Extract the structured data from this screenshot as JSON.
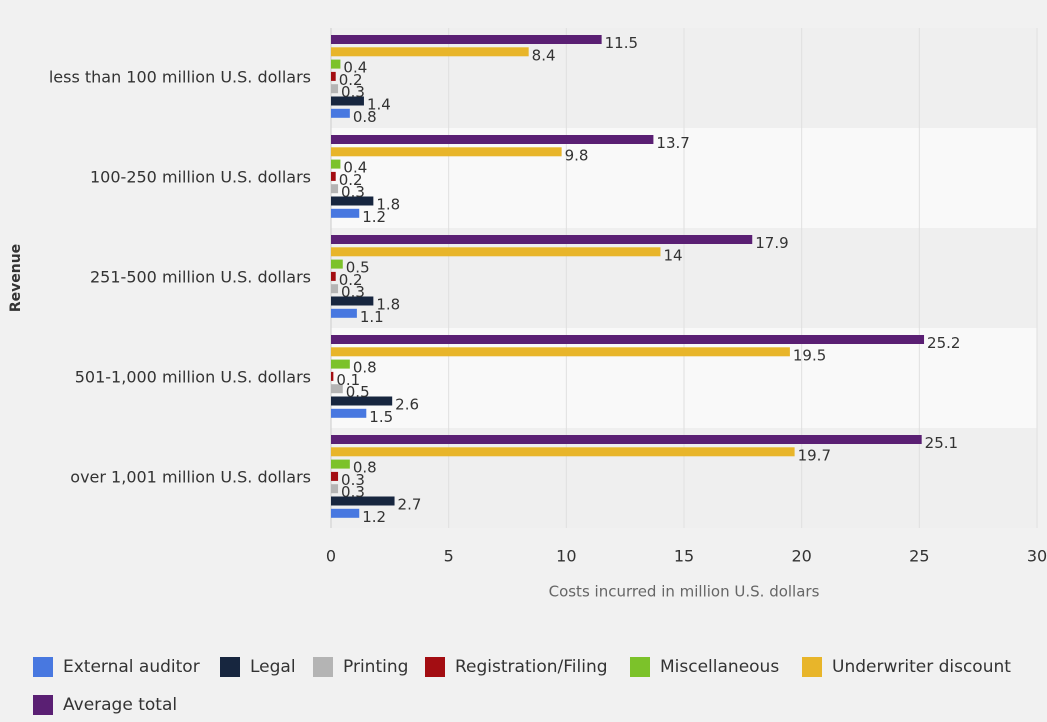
{
  "chart_data": {
    "type": "barh",
    "categories": [
      "less than 100 million U.S. dollars",
      "100-250 million U.S. dollars",
      "251-500 million U.S. dollars",
      "501-1,000 million U.S. dollars",
      "over 1,001 million U.S. dollars"
    ],
    "series": [
      {
        "name": "External auditor",
        "color": "#4878e0",
        "values": [
          0.8,
          1.2,
          1.1,
          1.5,
          1.2
        ]
      },
      {
        "name": "Legal",
        "color": "#17263f",
        "values": [
          1.4,
          1.8,
          1.8,
          2.6,
          2.7
        ]
      },
      {
        "name": "Printing",
        "color": "#b4b4b4",
        "values": [
          0.3,
          0.3,
          0.3,
          0.5,
          0.3
        ]
      },
      {
        "name": "Registration/Filing",
        "color": "#a30d12",
        "values": [
          0.2,
          0.2,
          0.2,
          0.1,
          0.3
        ]
      },
      {
        "name": "Miscellaneous",
        "color": "#7cc22a",
        "values": [
          0.4,
          0.4,
          0.5,
          0.8,
          0.8
        ]
      },
      {
        "name": "Underwriter discount",
        "color": "#e8b52a",
        "values": [
          8.4,
          9.8,
          14,
          19.5,
          19.7
        ]
      },
      {
        "name": "Average total",
        "color": "#5a1f73",
        "values": [
          11.5,
          13.7,
          17.9,
          25.2,
          25.1
        ]
      }
    ],
    "xlim": [
      0,
      30
    ],
    "xticks": [
      0,
      5,
      10,
      15,
      20,
      25,
      30
    ],
    "xlabel": "Costs incurred in million U.S. dollars",
    "ylabel": "Revenue",
    "grid": true,
    "legend": "bottom"
  }
}
